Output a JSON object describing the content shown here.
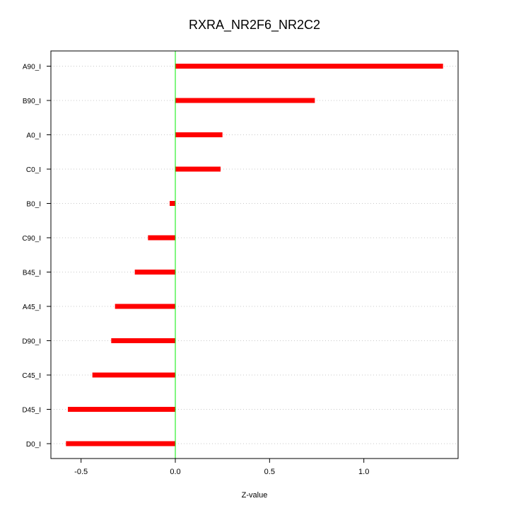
{
  "chart_data": {
    "type": "bar",
    "orientation": "horizontal",
    "title": "RXRA_NR2F6_NR2C2",
    "xlabel": "Z-value",
    "ylabel": "",
    "xlim": [
      -0.66,
      1.5
    ],
    "x_ticks": [
      -0.5,
      0.0,
      0.5,
      1.0
    ],
    "x_tick_labels": [
      "-0.5",
      "0.0",
      "0.5",
      "1.0"
    ],
    "grid": "horizontal dotted",
    "reference_line": 0,
    "categories": [
      "A90_I",
      "B90_I",
      "A0_I",
      "C0_I",
      "B0_I",
      "C90_I",
      "B45_I",
      "A45_I",
      "D90_I",
      "C45_I",
      "D45_I",
      "D0_I"
    ],
    "values": [
      1.42,
      0.74,
      0.25,
      0.24,
      -0.03,
      -0.145,
      -0.215,
      -0.32,
      -0.34,
      -0.44,
      -0.57,
      -0.58
    ],
    "bar_color": "#ff0000",
    "reference_color": "#00ee00"
  }
}
